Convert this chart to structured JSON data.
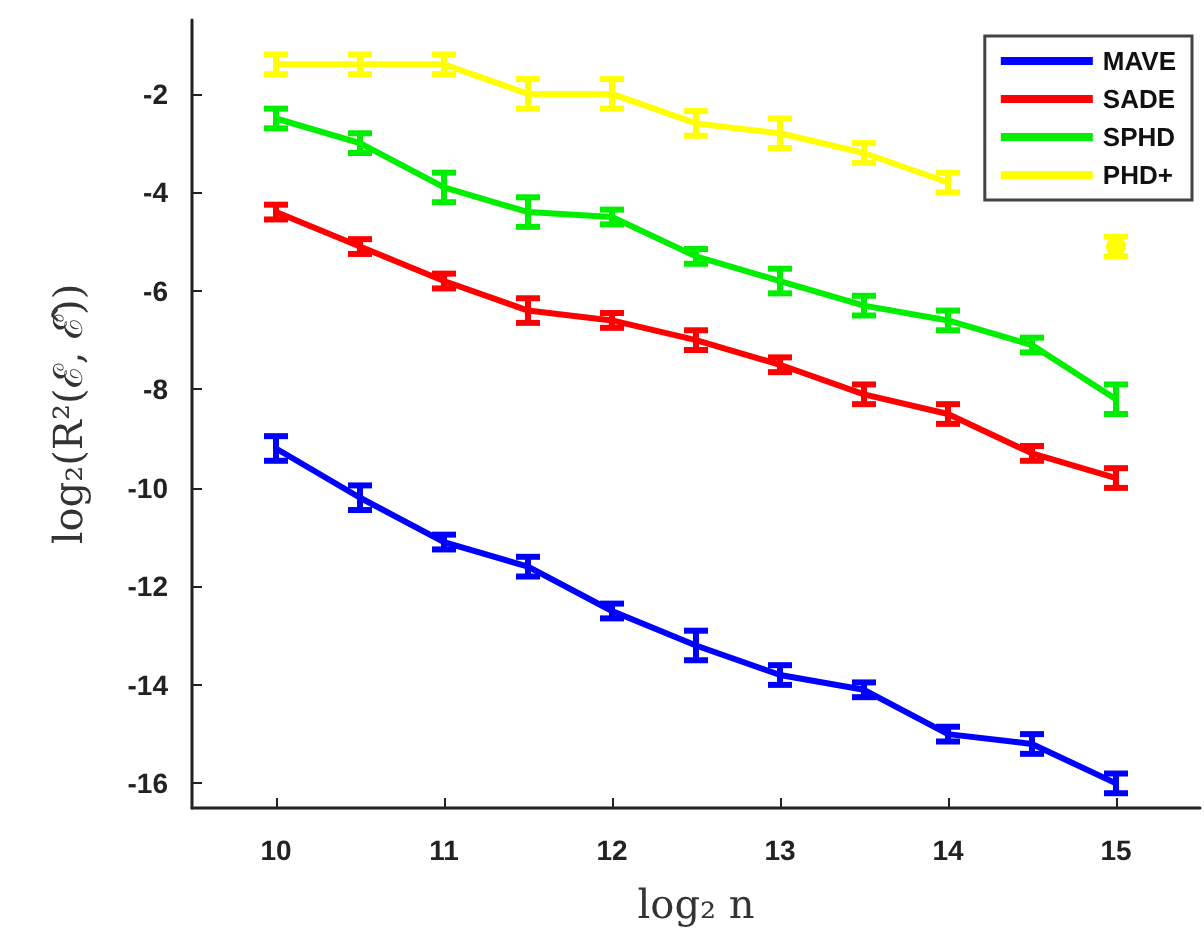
{
  "chart_data": {
    "type": "line",
    "xlabel": "log₂ n",
    "ylabel": "log₂(R²(ℰ, ℰ̂))",
    "x": [
      10,
      10.5,
      11,
      11.5,
      12,
      12.5,
      13,
      13.5,
      14,
      14.5,
      15
    ],
    "xlim": [
      9.5,
      15.5
    ],
    "xticks": [
      10,
      11,
      12,
      13,
      14,
      15
    ],
    "ylim": [
      -16.5,
      -0.5
    ],
    "yticks": [
      -16,
      -14,
      -12,
      -10,
      -8,
      -6,
      -4,
      -2
    ],
    "grid": false,
    "legend": "top right",
    "marker": "none",
    "line_style": "solid",
    "series": [
      {
        "name": "MAVE",
        "color": "#0000ff",
        "values": [
          -9.2,
          -10.2,
          -11.1,
          -11.6,
          -12.5,
          -13.2,
          -13.8,
          -14.1,
          -15.0,
          -15.2,
          -16.0
        ],
        "errors": [
          0.25,
          0.25,
          0.15,
          0.2,
          0.15,
          0.3,
          0.2,
          0.15,
          0.15,
          0.2,
          0.2
        ]
      },
      {
        "name": "SADE",
        "color": "#ff0000",
        "values": [
          -4.4,
          -5.1,
          -5.8,
          -6.4,
          -6.6,
          -7.0,
          -7.5,
          -8.1,
          -8.5,
          -9.3,
          -9.8
        ],
        "errors": [
          0.15,
          0.15,
          0.15,
          0.25,
          0.15,
          0.2,
          0.15,
          0.2,
          0.2,
          0.15,
          0.2
        ]
      },
      {
        "name": "SPHD",
        "color": "#00ee00",
        "values": [
          -2.5,
          -3.0,
          -3.9,
          -4.4,
          -4.5,
          -5.3,
          -5.8,
          -6.3,
          -6.6,
          -7.1,
          -8.2
        ],
        "errors": [
          0.2,
          0.2,
          0.3,
          0.3,
          0.15,
          0.15,
          0.25,
          0.2,
          0.2,
          0.15,
          0.3
        ]
      },
      {
        "name": "PHD+",
        "color": "#ffff00",
        "values": [
          -1.4,
          -1.4,
          -1.4,
          -2.0,
          -2.0,
          -2.6,
          -2.8,
          -3.2,
          -3.8,
          null,
          -5.1
        ],
        "errors": [
          0.2,
          0.2,
          0.2,
          0.3,
          0.3,
          0.25,
          0.3,
          0.2,
          0.2,
          null,
          0.2
        ]
      }
    ]
  }
}
